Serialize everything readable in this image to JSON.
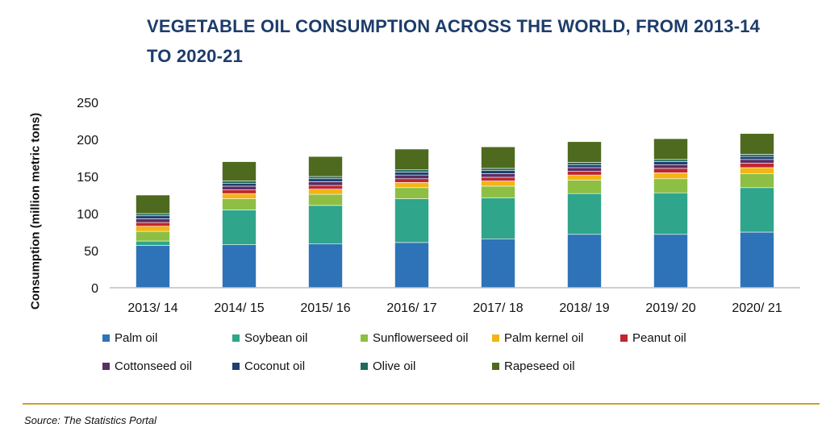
{
  "title": "VEGETABLE OIL CONSUMPTION ACROSS THE WORLD, FROM 2013-14 TO 2020-21",
  "source": "Source: The Statistics Portal",
  "colors": {
    "divider": "#c9a227",
    "title": "#1d3c6b"
  },
  "chart_data": {
    "type": "bar",
    "stacked": true,
    "ylabel": "Consumption (million metric tons)",
    "xlabel": "",
    "ylim": [
      0,
      250
    ],
    "yticks": [
      0,
      50,
      100,
      150,
      200,
      250
    ],
    "grid": false,
    "legend_position": "bottom",
    "categories": [
      "2013/ 14",
      "2014/ 15",
      "2015/ 16",
      "2016/ 17",
      "2017/ 18",
      "2018/ 19",
      "2019/ 20",
      "2020/ 21"
    ],
    "series": [
      {
        "name": "Palm oil",
        "color": "#2e73b8",
        "values": [
          57,
          58,
          59,
          61,
          66,
          72,
          72,
          75
        ]
      },
      {
        "name": "Soybean oil",
        "color": "#2fa58b",
        "values": [
          6,
          47,
          52,
          59,
          55,
          55,
          56,
          60
        ]
      },
      {
        "name": "Sunflowerseed oil",
        "color": "#8dbf44",
        "values": [
          13,
          15,
          15,
          15,
          16,
          18,
          19,
          19
        ]
      },
      {
        "name": "Palm kernel oil",
        "color": "#f2b515",
        "values": [
          7,
          7,
          7,
          7,
          7,
          7,
          8,
          8
        ]
      },
      {
        "name": "Peanut oil",
        "color": "#c0262c",
        "values": [
          5,
          5,
          5,
          5,
          5,
          5,
          6,
          6
        ]
      },
      {
        "name": "Cottonseed oil",
        "color": "#5a2d63",
        "values": [
          5,
          5,
          5,
          5,
          5,
          5,
          5,
          5
        ]
      },
      {
        "name": "Coconut oil",
        "color": "#1f3f6e",
        "values": [
          4,
          4,
          4,
          4,
          4,
          4,
          4,
          4
        ]
      },
      {
        "name": "Olive oil",
        "color": "#1e6b5d",
        "values": [
          3,
          3,
          3,
          3,
          3,
          3,
          3,
          3
        ]
      },
      {
        "name": "Rapeseed oil",
        "color": "#4e6a1e",
        "values": [
          25,
          26,
          27,
          28,
          29,
          28,
          28,
          28
        ]
      }
    ]
  }
}
